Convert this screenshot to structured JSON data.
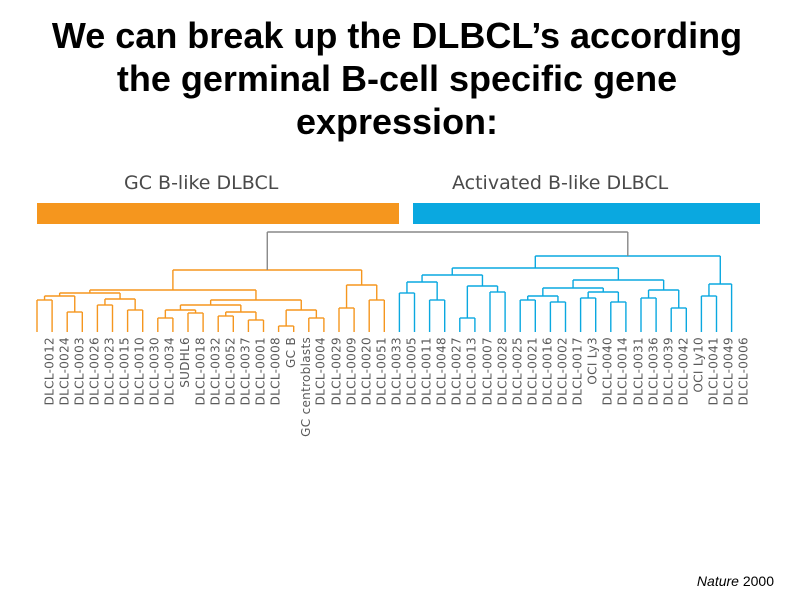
{
  "title_lines": [
    "We can break up the DLBCL’s according",
    "the germinal B-cell specific gene",
    "expression:"
  ],
  "groups": {
    "gc": {
      "label": "GC B-like DLBCL",
      "color": "#f5961e"
    },
    "abc": {
      "label": "Activated B-like DLBCL",
      "color": "#0aa8e0"
    }
  },
  "colors": {
    "root": "#888888"
  },
  "samples": [
    "DLCL-0012",
    "DLCL-0024",
    "DLCL-0003",
    "DLCL-0026",
    "DLCL-0023",
    "DLCL-0015",
    "DLCL-0010",
    "DLCL-0030",
    "DLCL-0034",
    "SUDHL6",
    "DLCL-0018",
    "DLCL-0032",
    "DLCL-0052",
    "DLCL-0037",
    "DLCL-0001",
    "DLCL-0008",
    "GC B",
    "GC centroblasts",
    "DLCL-0004",
    "DLCL-0029",
    "DLCL-0009",
    "DLCL-0020",
    "DLCL-0051",
    "DLCL-0033",
    "DLCL-0005",
    "DLCL-0011",
    "DLCL-0048",
    "DLCL-0027",
    "DLCL-0013",
    "DLCL-0007",
    "DLCL-0028",
    "DLCL-0025",
    "DLCL-0021",
    "DLCL-0016",
    "DLCL-0002",
    "DLCL-0017",
    "OCI Ly3",
    "DLCL-0040",
    "DLCL-0014",
    "DLCL-0031",
    "DLCL-0036",
    "DLCL-0039",
    "DLCL-0042",
    "OCI Ly10",
    "DLCL-0041",
    "DLCL-0049",
    "DLCL-0006"
  ],
  "gc_count": 24,
  "citation": {
    "journal": "Nature",
    "year": "2000"
  }
}
